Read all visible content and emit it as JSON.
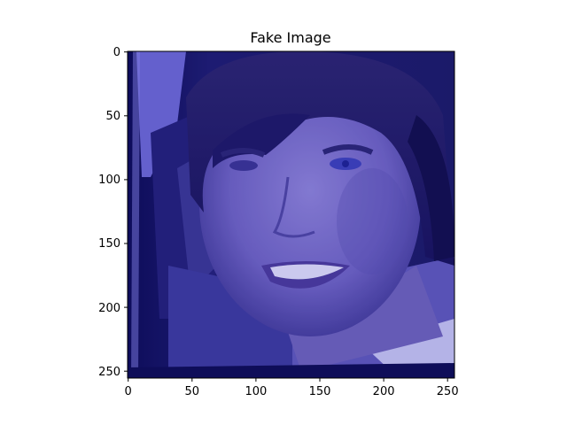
{
  "figure": {
    "title": "Fake Image",
    "x_axis": {
      "ticks": [
        "0",
        "50",
        "100",
        "150",
        "200",
        "250"
      ],
      "range": [
        0,
        256
      ]
    },
    "y_axis": {
      "ticks": [
        "0",
        "50",
        "100",
        "150",
        "200",
        "250"
      ],
      "range": [
        0,
        256
      ],
      "inverted": true
    },
    "image": {
      "description_tone": "blue-purple tinted portrait",
      "tint_color": "#5a55c8",
      "dark_color": "#0b0a55",
      "bright_color": "#8e8ee6"
    }
  }
}
